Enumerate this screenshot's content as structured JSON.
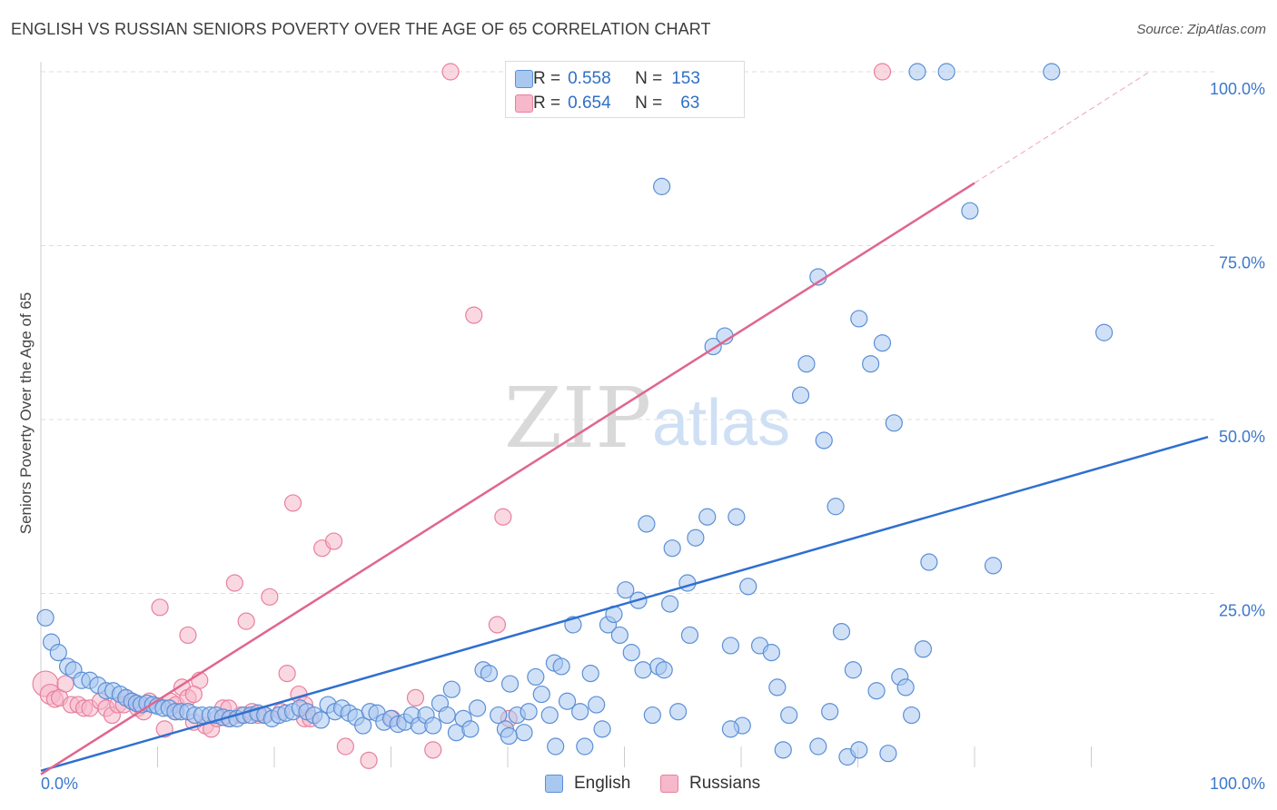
{
  "header": {
    "title": "ENGLISH VS RUSSIAN SENIORS POVERTY OVER THE AGE OF 65 CORRELATION CHART",
    "source": "Source: ZipAtlas.com"
  },
  "watermark": {
    "zip": "ZIP",
    "atlas": "atlas"
  },
  "legend": {
    "rows": [
      {
        "r_label": "R =",
        "r_value": "0.558",
        "n_label": "N =",
        "n_value": "153"
      },
      {
        "r_label": "R =",
        "r_value": "0.654",
        "n_label": "N =",
        "n_value": "63"
      }
    ]
  },
  "colors": {
    "english_fill": "#a9c8f0",
    "english_stroke": "#5b8fd6",
    "english_line": "#2f6fcf",
    "russians_fill": "#f6b8ca",
    "russians_stroke": "#e8809e",
    "russians_line": "#e06690",
    "tick_label": "#3b78cc",
    "grid": "#dddddd"
  },
  "chart_data": {
    "type": "scatter",
    "title": "ENGLISH VS RUSSIAN SENIORS POVERTY OVER THE AGE OF 65 CORRELATION CHART",
    "xlabel": "",
    "ylabel": "Seniors Poverty Over the Age of 65",
    "xlim": [
      0,
      100
    ],
    "ylim": [
      0,
      100
    ],
    "x_tick_labels": [
      "0.0%",
      "100.0%"
    ],
    "y_tick_labels": [
      "25.0%",
      "50.0%",
      "75.0%",
      "100.0%"
    ],
    "y_ticks": [
      25,
      50,
      75,
      100
    ],
    "grid": true,
    "legend_position": "bottom",
    "series": [
      {
        "name": "English",
        "R": 0.558,
        "N": 153,
        "trend": {
          "x": [
            0,
            100
          ],
          "y": [
            -0.5,
            47.5
          ]
        },
        "points": [
          [
            0.4,
            21.5
          ],
          [
            0.9,
            18
          ],
          [
            1.5,
            16.5
          ],
          [
            2.3,
            14.5
          ],
          [
            2.8,
            14
          ],
          [
            3.5,
            12.5
          ],
          [
            4.2,
            12.5
          ],
          [
            4.9,
            11.8
          ],
          [
            5.6,
            11
          ],
          [
            6.2,
            11
          ],
          [
            6.8,
            10.5
          ],
          [
            7.3,
            10
          ],
          [
            7.8,
            9.5
          ],
          [
            8.2,
            9.2
          ],
          [
            8.6,
            9
          ],
          [
            9.1,
            9.2
          ],
          [
            9.6,
            9
          ],
          [
            10,
            8.8
          ],
          [
            10.5,
            8.5
          ],
          [
            11,
            8.5
          ],
          [
            11.5,
            8
          ],
          [
            12,
            8
          ],
          [
            12.6,
            8
          ],
          [
            13.2,
            7.5
          ],
          [
            13.8,
            7.5
          ],
          [
            14.5,
            7.5
          ],
          [
            15,
            7.5
          ],
          [
            15.6,
            7.2
          ],
          [
            16.2,
            7
          ],
          [
            16.8,
            7
          ],
          [
            17.4,
            7.5
          ],
          [
            18,
            7.5
          ],
          [
            18.6,
            7.8
          ],
          [
            19.2,
            7.5
          ],
          [
            19.8,
            7
          ],
          [
            20.4,
            7.5
          ],
          [
            21,
            7.8
          ],
          [
            21.6,
            8
          ],
          [
            22.2,
            8.5
          ],
          [
            22.8,
            8
          ],
          [
            23.4,
            7.5
          ],
          [
            24,
            6.8
          ],
          [
            24.6,
            9
          ],
          [
            25.2,
            8
          ],
          [
            25.8,
            8.5
          ],
          [
            26.4,
            7.8
          ],
          [
            27,
            7.2
          ],
          [
            27.6,
            6
          ],
          [
            28.2,
            8
          ],
          [
            28.8,
            7.8
          ],
          [
            29.4,
            6.5
          ],
          [
            30,
            7
          ],
          [
            30.6,
            6.2
          ],
          [
            31.2,
            6.5
          ],
          [
            31.8,
            7.5
          ],
          [
            32.4,
            6
          ],
          [
            33,
            7.5
          ],
          [
            33.6,
            6
          ],
          [
            34.2,
            9.2
          ],
          [
            34.8,
            7.5
          ],
          [
            35.2,
            11.2
          ],
          [
            35.6,
            5
          ],
          [
            36.2,
            7
          ],
          [
            36.8,
            5.5
          ],
          [
            37.4,
            8.5
          ],
          [
            37.9,
            14
          ],
          [
            38.4,
            13.5
          ],
          [
            39.2,
            7.5
          ],
          [
            39.8,
            5.5
          ],
          [
            40.2,
            12
          ],
          [
            40.8,
            7.5
          ],
          [
            41.4,
            5
          ],
          [
            41.8,
            8
          ],
          [
            42.4,
            13
          ],
          [
            42.9,
            10.5
          ],
          [
            43.6,
            7.5
          ],
          [
            44,
            15
          ],
          [
            44.6,
            14.5
          ],
          [
            45.1,
            9.5
          ],
          [
            45.6,
            20.5
          ],
          [
            46.2,
            8
          ],
          [
            46.6,
            3
          ],
          [
            47.1,
            13.5
          ],
          [
            47.6,
            9
          ],
          [
            48.1,
            5.5
          ],
          [
            48.6,
            20.5
          ],
          [
            49.1,
            22
          ],
          [
            49.6,
            19
          ],
          [
            50.1,
            25.5
          ],
          [
            50.6,
            16.5
          ],
          [
            51.2,
            24
          ],
          [
            51.6,
            14
          ],
          [
            51.9,
            35
          ],
          [
            52.4,
            7.5
          ],
          [
            52.9,
            14.5
          ],
          [
            53.4,
            14
          ],
          [
            53.9,
            23.5
          ],
          [
            54.1,
            31.5
          ],
          [
            54.6,
            8
          ],
          [
            55.4,
            26.5
          ],
          [
            55.6,
            19
          ],
          [
            56.1,
            33
          ],
          [
            57.1,
            36
          ],
          [
            57.6,
            60.5
          ],
          [
            58.6,
            62
          ],
          [
            59.1,
            17.5
          ],
          [
            59.6,
            36
          ],
          [
            60.1,
            6
          ],
          [
            60.6,
            26
          ],
          [
            61.6,
            17.5
          ],
          [
            62.6,
            16.5
          ],
          [
            63.1,
            11.5
          ],
          [
            63.6,
            2.5
          ],
          [
            64.1,
            7.5
          ],
          [
            65.1,
            53.5
          ],
          [
            65.6,
            58
          ],
          [
            66.6,
            70.5
          ],
          [
            67.1,
            47
          ],
          [
            67.6,
            8
          ],
          [
            68.1,
            37.5
          ],
          [
            68.6,
            19.5
          ],
          [
            69.1,
            1.5
          ],
          [
            69.6,
            14
          ],
          [
            70.1,
            64.5
          ],
          [
            71.1,
            58
          ],
          [
            71.6,
            11
          ],
          [
            72.1,
            61
          ],
          [
            72.6,
            2
          ],
          [
            73.1,
            49.5
          ],
          [
            73.6,
            13
          ],
          [
            74.1,
            11.5
          ],
          [
            74.6,
            7.5
          ],
          [
            75.6,
            17
          ],
          [
            76.1,
            29.5
          ],
          [
            79.6,
            80
          ],
          [
            81.6,
            29
          ],
          [
            91.1,
            62.5
          ],
          [
            53.2,
            83.5
          ],
          [
            75.1,
            100
          ],
          [
            77.6,
            100
          ],
          [
            86.6,
            100
          ],
          [
            40.1,
            4.5
          ],
          [
            44.1,
            3
          ],
          [
            59.1,
            5.5
          ],
          [
            66.6,
            3
          ],
          [
            70.1,
            2.5
          ]
        ]
      },
      {
        "name": "Russians",
        "R": 0.654,
        "N": 63,
        "trend": {
          "x": [
            0,
            80
          ],
          "y": [
            -1,
            84
          ]
        },
        "trend_dashed": {
          "x": [
            80,
            95
          ],
          "y": [
            84,
            100
          ]
        },
        "points": [
          [
            0.4,
            12
          ],
          [
            0.8,
            10.5
          ],
          [
            1.2,
            9.8
          ],
          [
            1.6,
            10
          ],
          [
            2.1,
            12
          ],
          [
            2.6,
            9
          ],
          [
            3.2,
            9
          ],
          [
            3.7,
            8.5
          ],
          [
            4.2,
            8.5
          ],
          [
            5.1,
            9.5
          ],
          [
            5.6,
            8.5
          ],
          [
            6.1,
            7.5
          ],
          [
            6.6,
            9
          ],
          [
            7.3,
            10
          ],
          [
            7.8,
            9.5
          ],
          [
            8.3,
            8.5
          ],
          [
            8.8,
            8
          ],
          [
            9.3,
            9.5
          ],
          [
            10.2,
            23
          ],
          [
            10.6,
            5.5
          ],
          [
            11.1,
            9.5
          ],
          [
            11.6,
            8
          ],
          [
            12.1,
            11.5
          ],
          [
            12.6,
            19
          ],
          [
            13.1,
            6.5
          ],
          [
            13.6,
            12.5
          ],
          [
            14.1,
            6
          ],
          [
            14.6,
            5.5
          ],
          [
            15.1,
            7
          ],
          [
            15.6,
            8.5
          ],
          [
            16.1,
            7
          ],
          [
            16.6,
            26.5
          ],
          [
            17.1,
            7.5
          ],
          [
            17.6,
            21
          ],
          [
            18.1,
            8
          ],
          [
            19.1,
            7.5
          ],
          [
            19.6,
            24.5
          ],
          [
            20.6,
            8
          ],
          [
            21.1,
            13.5
          ],
          [
            21.6,
            38
          ],
          [
            22.1,
            10.5
          ],
          [
            22.6,
            7
          ],
          [
            23.1,
            7
          ],
          [
            24.1,
            31.5
          ],
          [
            25.1,
            32.5
          ],
          [
            26.1,
            3
          ],
          [
            28.1,
            1
          ],
          [
            30.1,
            7
          ],
          [
            32.1,
            10
          ],
          [
            33.6,
            2.5
          ],
          [
            35.1,
            100
          ],
          [
            37.1,
            65
          ],
          [
            39.1,
            20.5
          ],
          [
            39.6,
            36
          ],
          [
            40.1,
            7
          ],
          [
            11.6,
            9
          ],
          [
            12.6,
            10
          ],
          [
            13.1,
            10.5
          ],
          [
            16.1,
            8.5
          ],
          [
            18.6,
            7.5
          ],
          [
            22.6,
            9
          ],
          [
            72.1,
            100
          ],
          [
            7.1,
            9
          ]
        ]
      }
    ]
  }
}
